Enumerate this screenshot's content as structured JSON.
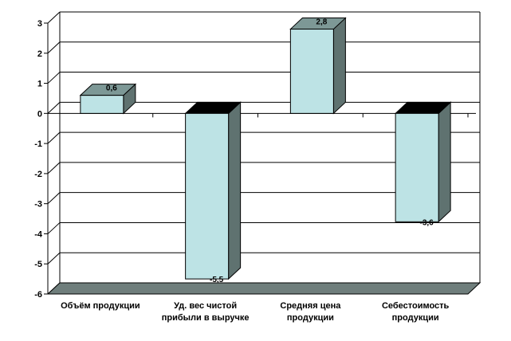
{
  "chart_data": {
    "type": "bar",
    "three_d": true,
    "title": "",
    "xlabel": "",
    "ylabel": "",
    "ylim": [
      -6,
      3
    ],
    "yticks": [
      "3",
      "2",
      "1",
      "0",
      "-1",
      "-2",
      "-3",
      "-4",
      "-5",
      "-6"
    ],
    "grid": true,
    "legend": "none",
    "categories": [
      [
        "Объём продукции"
      ],
      [
        "Уд. вес чистой",
        "прибыли в выручке"
      ],
      [
        "Средняя цена",
        "продукции"
      ],
      [
        "Себестоимость",
        "продукции"
      ]
    ],
    "values": [
      0.6,
      -5.5,
      2.8,
      -3.6
    ],
    "data_labels": [
      "0,6",
      "-5,5",
      "2,8",
      "-3,6"
    ],
    "colors": {
      "bar_front": "#bde3e5",
      "bar_side": "#5f7270",
      "bar_top": "#7d9896",
      "bar_top_negative": "#000000",
      "floor": "#6f7e7c",
      "grid": "#000000"
    }
  }
}
